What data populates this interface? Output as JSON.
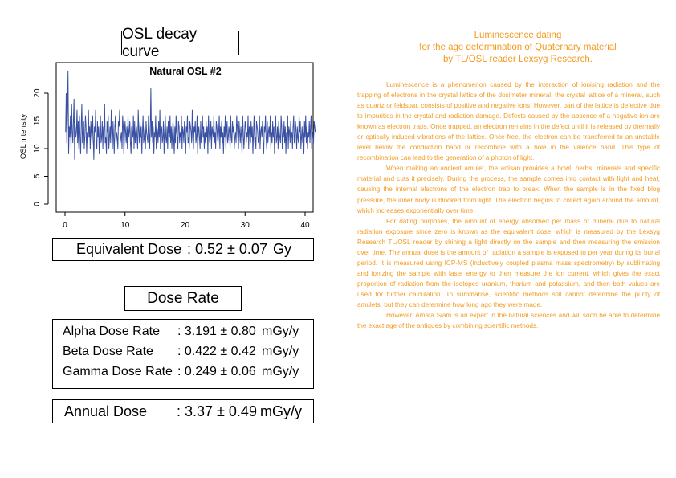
{
  "osl_title": "OSL decay curve",
  "chart_data": {
    "type": "line",
    "title": "Natural OSL #2",
    "ylabel": "OSL intensity",
    "xlabel": "",
    "xlim": [
      0,
      40
    ],
    "ylim": [
      0,
      25
    ],
    "xticks": [
      "0",
      "10",
      "20",
      "30",
      "40"
    ],
    "yticks": [
      "0",
      "5",
      "10",
      "15",
      "20"
    ],
    "grid": false,
    "color": "#3a51a3",
    "x_step": 0.1,
    "x_start": 0.1,
    "series": [
      {
        "values": [
          13,
          20,
          11,
          17,
          24,
          9,
          14,
          12,
          16,
          10,
          18,
          13,
          11,
          15,
          19,
          8,
          14,
          12,
          13,
          17,
          11,
          15,
          10,
          16,
          12,
          9,
          14,
          18,
          11,
          13,
          15,
          10,
          12,
          16,
          14,
          9,
          13,
          11,
          17,
          12,
          14,
          10,
          15,
          13,
          11,
          16,
          12,
          8,
          14,
          13,
          17,
          11,
          10,
          15,
          12,
          14,
          9,
          13,
          16,
          11,
          12,
          15,
          10,
          14,
          13,
          18,
          11,
          12,
          9,
          15,
          13,
          16,
          10,
          12,
          14,
          11,
          17,
          13,
          10,
          15,
          12,
          9,
          14,
          16,
          11,
          13,
          12,
          10,
          15,
          14,
          17,
          11,
          12,
          13,
          10,
          16,
          14,
          9,
          12,
          15,
          13,
          11,
          14,
          10,
          16,
          12,
          13,
          15,
          11,
          9,
          14,
          13,
          12,
          16,
          10,
          15,
          11,
          13,
          14,
          12,
          10,
          17,
          13,
          11,
          15,
          12,
          14,
          9,
          13,
          16,
          11,
          12,
          14,
          10,
          15,
          13,
          12,
          11,
          16,
          14,
          10,
          13,
          21,
          12,
          15,
          11,
          14,
          9,
          13,
          12,
          16,
          10,
          14,
          13,
          11,
          15,
          12,
          17,
          10,
          13,
          14,
          11,
          12,
          15,
          9,
          13,
          16,
          12,
          11,
          14,
          10,
          15,
          13,
          12,
          16,
          11,
          14,
          10,
          13,
          15,
          12,
          9,
          14,
          11,
          16,
          13,
          12,
          10,
          15,
          14,
          11,
          13,
          12,
          16,
          10,
          14,
          13,
          11,
          15,
          12,
          9,
          14,
          13,
          16,
          11,
          12,
          10,
          15,
          14,
          13,
          11,
          17,
          12,
          10,
          14,
          13,
          15,
          11,
          12,
          16,
          9,
          13,
          14,
          12,
          10,
          15,
          11,
          13,
          16,
          12,
          14,
          10,
          13,
          11,
          15,
          12,
          14,
          9,
          16,
          13,
          11,
          12,
          15,
          10,
          14,
          13,
          12,
          16,
          11,
          13,
          10,
          15,
          14,
          12,
          11,
          13,
          16,
          10,
          14,
          12,
          15,
          11,
          13,
          9,
          14,
          12,
          16,
          10,
          13,
          15,
          11,
          12,
          14,
          13,
          10,
          16,
          12,
          11,
          15,
          13,
          14,
          10,
          12,
          13,
          11,
          16,
          14,
          12,
          10,
          15,
          13,
          11,
          14,
          12,
          9,
          16,
          13,
          10,
          12,
          15,
          14,
          11,
          13,
          12,
          16,
          10,
          14,
          13,
          11,
          15,
          12,
          14,
          9,
          13,
          16,
          11,
          12,
          10,
          15,
          14,
          13,
          11,
          12,
          16,
          10,
          13,
          14,
          12,
          15,
          11,
          9,
          14,
          13,
          16,
          12,
          10,
          15,
          11,
          13,
          14,
          12,
          16,
          10,
          13,
          11,
          15,
          12,
          14,
          9,
          13,
          16,
          11,
          12,
          14,
          10,
          15,
          13,
          12,
          11,
          16,
          14,
          10,
          13,
          12,
          15,
          11,
          14,
          9,
          13,
          12,
          16,
          10,
          14,
          13,
          11,
          15,
          12,
          13,
          10,
          14,
          16,
          11,
          12,
          15,
          13,
          10,
          14,
          12,
          11,
          16,
          13,
          15,
          10,
          12,
          14,
          11,
          13,
          9,
          15,
          12,
          16,
          11,
          14,
          10,
          13,
          12,
          15,
          11,
          14,
          16,
          10,
          13,
          12,
          11,
          15,
          14,
          13
        ]
      }
    ]
  },
  "equivalent_dose": {
    "label": "Equivalent Dose",
    "value": ": 0.52 ± 0.07",
    "unit": "Gy"
  },
  "dose_rate_title": "Dose Rate",
  "dose_rates": [
    {
      "label": "Alpha Dose Rate",
      "value": ": 3.191 ± 0.80",
      "unit": "mGy/y"
    },
    {
      "label": "Beta Dose Rate",
      "value": ": 0.422 ± 0.42",
      "unit": "mGy/y"
    },
    {
      "label": "Gamma Dose Rate",
      "value": ": 0.249 ± 0.06",
      "unit": "mGy/y"
    }
  ],
  "annual_dose": {
    "label": "Annual Dose",
    "value": ": 3.37 ± 0.49",
    "unit": "mGy/y"
  },
  "article": {
    "title_lines": [
      "Luminescence dating",
      "for the age determination of Quaternary material",
      "by TL/OSL reader Lexsyg Research."
    ],
    "paragraphs": [
      "Luminescence is a phenomenon caused by the interaction of ionising radiation and the trapping of electrons in the crystal lattice of the dosimeter mineral. the crystal lattice of a mineral, such as quartz or feldspar, consists of positive and negative ions. However, part of the lattice is defective due to impurities in the crystal and radiation damage. Defects caused by the absence of a negative ion are known as electron traps. Once trapped, an electron remains in the defect until it is released by thermally or optically induced vibrations of the lattice. Once free, the electron can be transferred to an unstable level below the conduction band or recombine with a hole in the valence band. This type of recombination can lead to the generation of a photon of light.",
      "When making an ancient amulet, the artisan provides a bowl, herbs, minerals and specific material and cuts it precisely. During the process, the sample comes into contact with light and heat, causing the internal electrons of the electron trap to break. When the sample is in the fixed blog pressure, the inner body is blocked from light. The electron begins to collect again around the amount, which increases exponentially over time.",
      "For dating purposes, the amount of energy absorbed per mass of mineral due to natural radiation exposure since zero is known as the equivalent dose, which is measured by the Lexsyg Research TL/OSL reader by shining a light directly on the sample and then measuring the emission over time. The annual dose is the amount of radiation a sample is exposed to per year during its burial period. It is measured using ICP-MS (inductively coupled plasma mass spectrometry) by sublimating and ionizing the sample with laser energy to then measure the ion current, which gives the exact proportion of radiation from the isotopes uranium, thorium and potassium, and then both values are used for further calculation. To summarise, scientific methods still cannot determine the purity of amulets, but they can determine how long ago they were made.",
      "However, Amata Siam is an expert in the natural sciences and will soon be able to determine the exact age of the antiques by combining scientific methods."
    ]
  }
}
